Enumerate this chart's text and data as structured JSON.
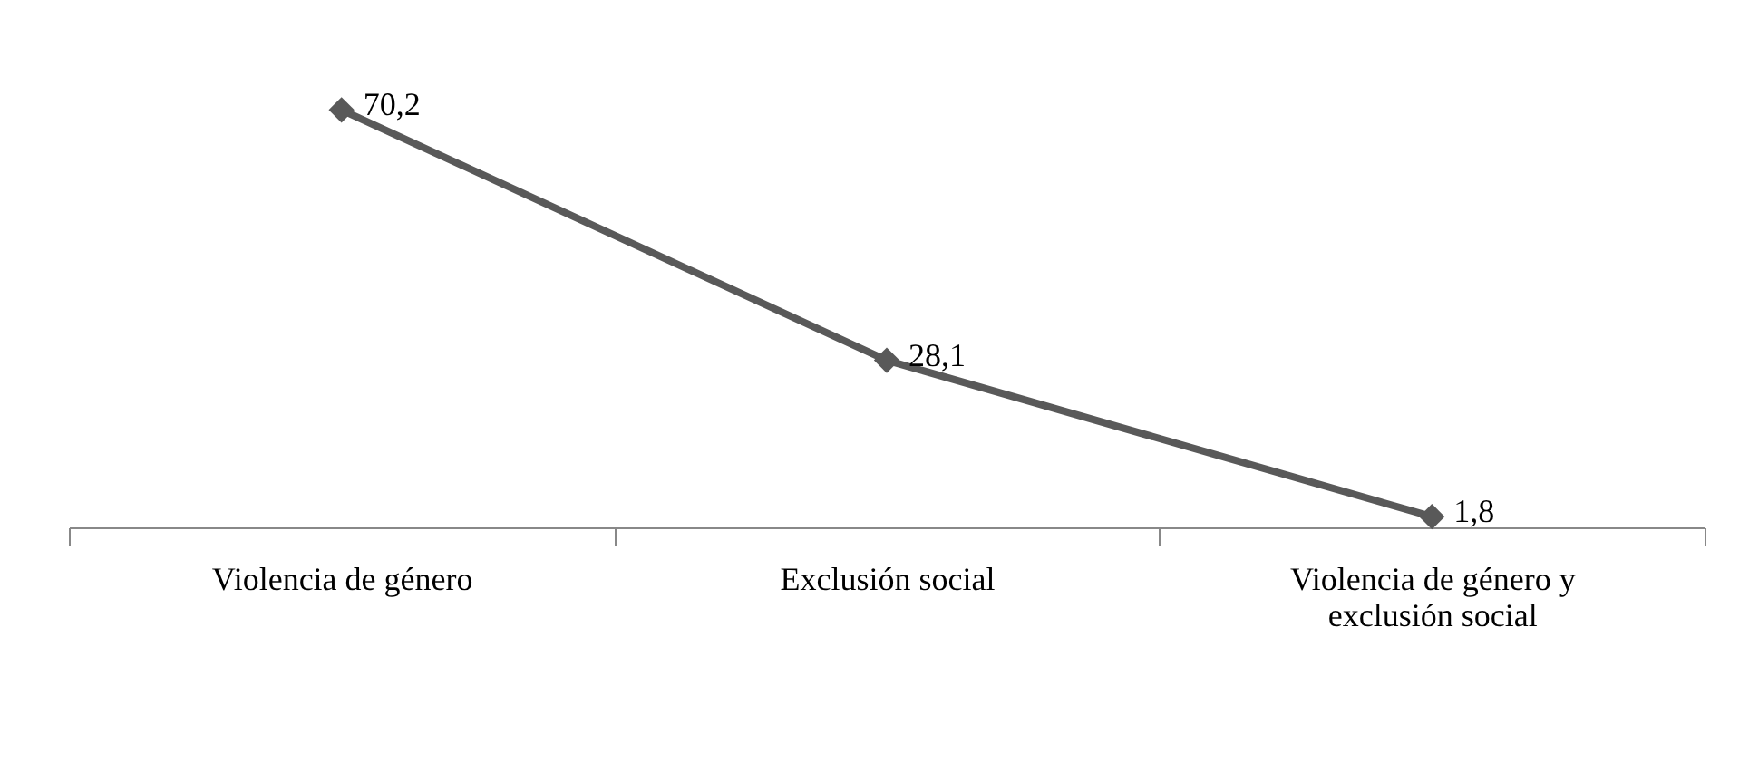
{
  "chart_data": {
    "type": "line",
    "categories": [
      "Violencia de género",
      "Exclusión social",
      "Violencia de género y exclusión social"
    ],
    "series": [
      {
        "color": "#595959",
        "values": [
          70.2,
          28.1,
          1.8
        ],
        "value_labels": [
          "70,2",
          "28,1",
          "1,8"
        ]
      }
    ],
    "marker": "diamond",
    "line_style": "solid",
    "grid": false
  }
}
